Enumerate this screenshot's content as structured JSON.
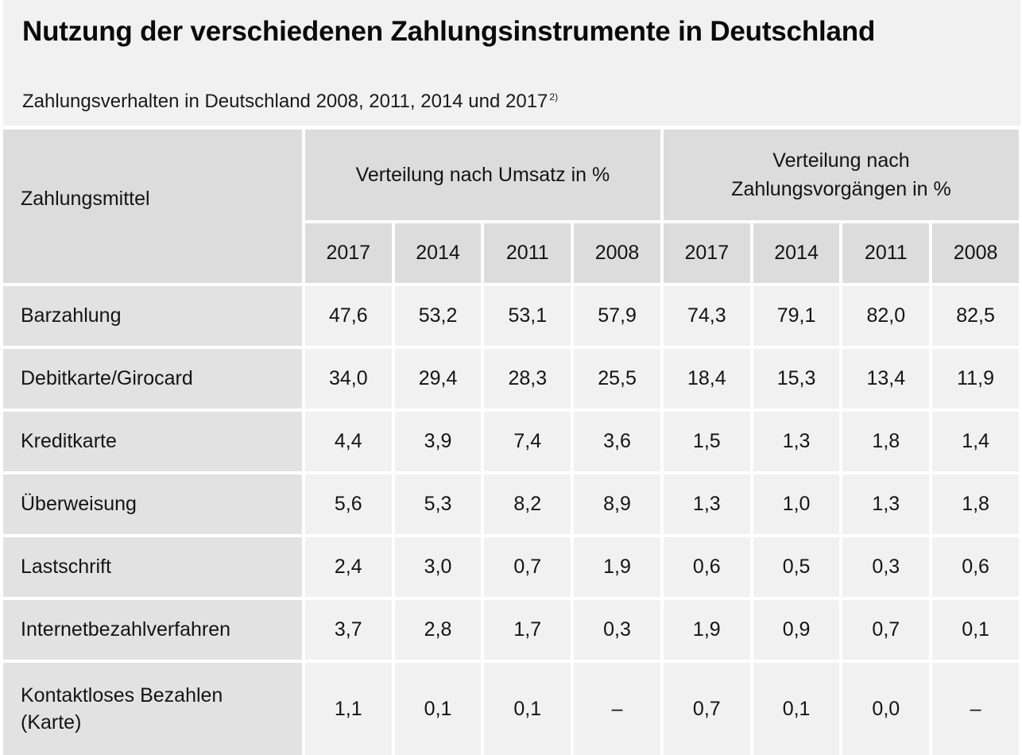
{
  "title": "Nutzung der verschiedenen Zahlungsinstrumente in Deutschland",
  "subtitle": "Zahlungsverhalten in Deutschland 2008, 2011, 2014 und 2017",
  "subtitle_footnote": "2)",
  "table": {
    "first_col_header": "Zahlungsmittel",
    "group_headers": [
      "Verteilung nach Umsatz in %",
      "Verteilung nach Zahlungsvorgängen in %"
    ],
    "group_header_2_lines": [
      "Verteilung nach",
      "Zahlungsvorgängen in %"
    ],
    "years": [
      "2017",
      "2014",
      "2011",
      "2008",
      "2017",
      "2014",
      "2011",
      "2008"
    ],
    "rows": [
      {
        "label": "Barzahlung",
        "values": [
          "47,6",
          "53,2",
          "53,1",
          "57,9",
          "74,3",
          "79,1",
          "82,0",
          "82,5"
        ]
      },
      {
        "label": "Debitkarte/Girocard",
        "values": [
          "34,0",
          "29,4",
          "28,3",
          "25,5",
          "18,4",
          "15,3",
          "13,4",
          "11,9"
        ]
      },
      {
        "label": "Kreditkarte",
        "values": [
          "4,4",
          "3,9",
          "7,4",
          "3,6",
          "1,5",
          "1,3",
          "1,8",
          "1,4"
        ]
      },
      {
        "label": "Überweisung",
        "values": [
          "5,6",
          "5,3",
          "8,2",
          "8,9",
          "1,3",
          "1,0",
          "1,3",
          "1,8"
        ]
      },
      {
        "label": "Lastschrift",
        "values": [
          "2,4",
          "3,0",
          "0,7",
          "1,9",
          "0,6",
          "0,5",
          "0,3",
          "0,6"
        ]
      },
      {
        "label": "Internetbezahlverfahren",
        "values": [
          "3,7",
          "2,8",
          "1,7",
          "0,3",
          "1,9",
          "0,9",
          "0,7",
          "0,1"
        ]
      },
      {
        "label_lines": [
          "Kontaktloses Bezahlen",
          "(Karte)"
        ],
        "values": [
          "1,1",
          "0,1",
          "0,1",
          "–",
          "0,7",
          "0,1",
          "0,0",
          "–"
        ]
      }
    ]
  },
  "colors": {
    "header_bg": "#dcdcdc",
    "label_bg": "#e2e2e2",
    "value_bg": "#f1f1f1",
    "title_bg": "#f1f1f1"
  }
}
